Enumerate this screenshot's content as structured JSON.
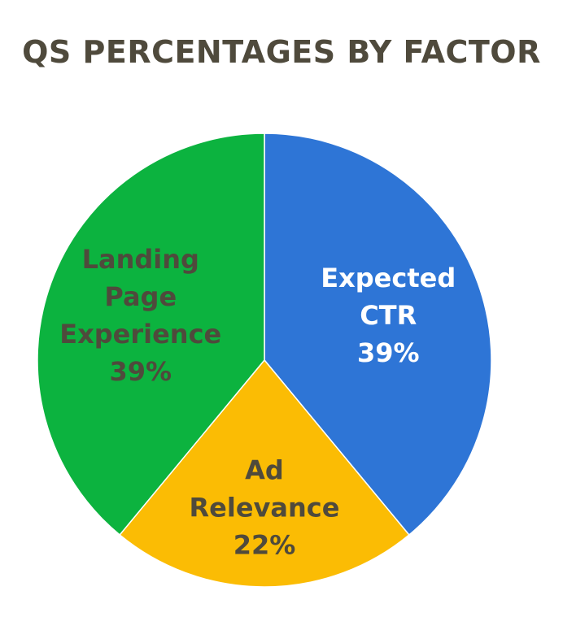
{
  "chart_data": {
    "type": "pie",
    "title": "QS PERCENTAGES BY FACTOR",
    "slices": [
      {
        "label_lines": [
          "Expected",
          "CTR"
        ],
        "value": 39,
        "value_text": "39%",
        "color": "#2e75d6",
        "text_color": "#ffffff"
      },
      {
        "label_lines": [
          "Ad",
          "Relevance"
        ],
        "value": 22,
        "value_text": "22%",
        "color": "#fbbc04",
        "text_color": "#4f4a3c"
      },
      {
        "label_lines": [
          "Landing",
          "Page",
          "Experience"
        ],
        "value": 39,
        "value_text": "39%",
        "color": "#0cb33f",
        "text_color": "#4f4a3c"
      }
    ],
    "start_angle_deg": 0,
    "direction": "clockwise",
    "border_color": "#ffffff"
  }
}
